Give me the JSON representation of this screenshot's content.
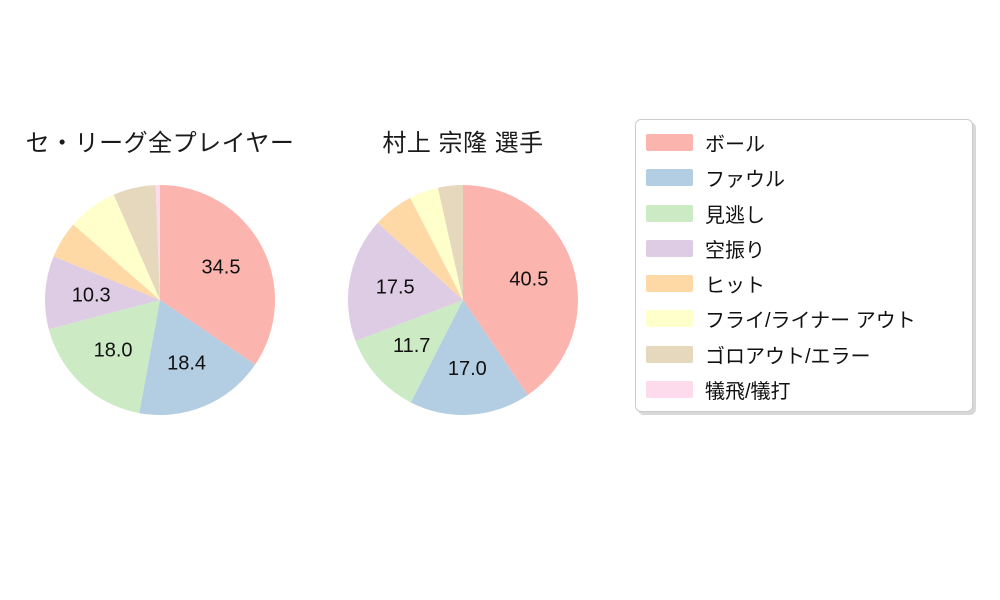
{
  "chart_data": [
    {
      "type": "pie",
      "title": "セ・リーグ全プレイヤー",
      "unit": "percent",
      "start_angle": "12-o-clock",
      "direction": "clockwise",
      "label_distance": 0.6,
      "categories": [
        "ボール",
        "ファウル",
        "見逃し",
        "空振り",
        "ヒット",
        "フライ/ライナー アウト",
        "ゴロアウト/エラー",
        "犠飛/犠打"
      ],
      "values": [
        34.5,
        18.4,
        18.0,
        10.3,
        5.2,
        7.0,
        6.0,
        0.6
      ],
      "value_labels": [
        "34.5",
        "18.4",
        "18.0",
        "10.3",
        "",
        "",
        "",
        ""
      ]
    },
    {
      "type": "pie",
      "title": "村上 宗隆 選手",
      "unit": "percent",
      "start_angle": "12-o-clock",
      "direction": "clockwise",
      "label_distance": 0.6,
      "categories": [
        "ボール",
        "ファウル",
        "見逃し",
        "空振り",
        "ヒット",
        "フライ/ライナー アウト",
        "ゴロアウト/エラー",
        "犠飛/犠打"
      ],
      "values": [
        40.5,
        17.0,
        11.7,
        17.5,
        5.7,
        4.1,
        3.5,
        0
      ],
      "value_labels": [
        "40.5",
        "17.0",
        "11.7",
        "17.5",
        "",
        "",
        "",
        ""
      ]
    }
  ],
  "palette": [
    "#fbb4ae",
    "#b3cde3",
    "#ccebc5",
    "#decbe4",
    "#fed9a6",
    "#ffffcc",
    "#e5d8bd",
    "#fddaec"
  ],
  "legend": {
    "items": [
      {
        "label": "ボール",
        "color": "#fbb4ae"
      },
      {
        "label": "ファウル",
        "color": "#b3cde3"
      },
      {
        "label": "見逃し",
        "color": "#ccebc5"
      },
      {
        "label": "空振り",
        "color": "#decbe4"
      },
      {
        "label": "ヒット",
        "color": "#fed9a6"
      },
      {
        "label": "フライ/ライナー アウト",
        "color": "#ffffcc"
      },
      {
        "label": "ゴロアウト/エラー",
        "color": "#e5d8bd"
      },
      {
        "label": "犠飛/犠打",
        "color": "#fddaec"
      }
    ]
  }
}
